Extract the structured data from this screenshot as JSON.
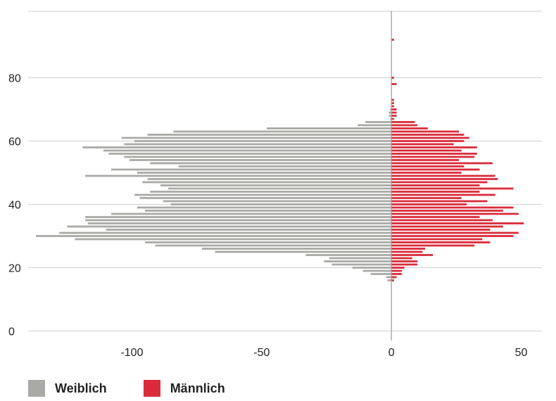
{
  "chart_data": {
    "type": "bar",
    "orientation": "horizontal-diverging",
    "x_ticks": [
      -100,
      -50,
      0,
      50
    ],
    "y_ticks": [
      0,
      20,
      40,
      60,
      80
    ],
    "xlim": [
      -140,
      58
    ],
    "ylim": [
      -3,
      101
    ],
    "grid": "horizontal",
    "legend_position": "bottom-left",
    "series": [
      {
        "name": "Weiblich",
        "color": "#a9a9a6",
        "points": [
          {
            "age": 16,
            "value": -1.5
          },
          {
            "age": 17,
            "value": -2
          },
          {
            "age": 18,
            "value": -8
          },
          {
            "age": 19,
            "value": -11
          },
          {
            "age": 20,
            "value": -15
          },
          {
            "age": 21,
            "value": -23
          },
          {
            "age": 22,
            "value": -26
          },
          {
            "age": 23,
            "value": -24
          },
          {
            "age": 24,
            "value": -33
          },
          {
            "age": 25,
            "value": -68
          },
          {
            "age": 26,
            "value": -73
          },
          {
            "age": 27,
            "value": -91
          },
          {
            "age": 28,
            "value": -95
          },
          {
            "age": 29,
            "value": -122
          },
          {
            "age": 30,
            "value": -137
          },
          {
            "age": 31,
            "value": -128
          },
          {
            "age": 32,
            "value": -110
          },
          {
            "age": 33,
            "value": -125
          },
          {
            "age": 34,
            "value": -117
          },
          {
            "age": 35,
            "value": -118
          },
          {
            "age": 36,
            "value": -118
          },
          {
            "age": 37,
            "value": -108
          },
          {
            "age": 38,
            "value": -95
          },
          {
            "age": 39,
            "value": -98
          },
          {
            "age": 40,
            "value": -85
          },
          {
            "age": 41,
            "value": -88
          },
          {
            "age": 42,
            "value": -97
          },
          {
            "age": 43,
            "value": -99
          },
          {
            "age": 44,
            "value": -93
          },
          {
            "age": 45,
            "value": -86
          },
          {
            "age": 46,
            "value": -89
          },
          {
            "age": 47,
            "value": -96
          },
          {
            "age": 48,
            "value": -94
          },
          {
            "age": 49,
            "value": -118
          },
          {
            "age": 50,
            "value": -98
          },
          {
            "age": 51,
            "value": -108
          },
          {
            "age": 52,
            "value": -82
          },
          {
            "age": 53,
            "value": -93
          },
          {
            "age": 54,
            "value": -101
          },
          {
            "age": 55,
            "value": -103
          },
          {
            "age": 56,
            "value": -109
          },
          {
            "age": 57,
            "value": -111
          },
          {
            "age": 58,
            "value": -119
          },
          {
            "age": 59,
            "value": -103
          },
          {
            "age": 60,
            "value": -99
          },
          {
            "age": 61,
            "value": -104
          },
          {
            "age": 62,
            "value": -94
          },
          {
            "age": 63,
            "value": -84
          },
          {
            "age": 64,
            "value": -48
          },
          {
            "age": 65,
            "value": -13
          },
          {
            "age": 66,
            "value": -10
          },
          {
            "age": 67,
            "value": -0.5
          },
          {
            "age": 68,
            "value": -1
          },
          {
            "age": 69,
            "value": -1
          },
          {
            "age": 70,
            "value": -0.5
          }
        ]
      },
      {
        "name": "Männlich",
        "color": "#d92b3a",
        "points": [
          {
            "age": 16,
            "value": 1
          },
          {
            "age": 17,
            "value": 2
          },
          {
            "age": 18,
            "value": 4
          },
          {
            "age": 19,
            "value": 4
          },
          {
            "age": 20,
            "value": 5
          },
          {
            "age": 21,
            "value": 10
          },
          {
            "age": 22,
            "value": 10
          },
          {
            "age": 23,
            "value": 8
          },
          {
            "age": 24,
            "value": 16
          },
          {
            "age": 25,
            "value": 12
          },
          {
            "age": 26,
            "value": 13
          },
          {
            "age": 27,
            "value": 32
          },
          {
            "age": 28,
            "value": 38
          },
          {
            "age": 29,
            "value": 35
          },
          {
            "age": 30,
            "value": 47
          },
          {
            "age": 31,
            "value": 49
          },
          {
            "age": 32,
            "value": 38
          },
          {
            "age": 33,
            "value": 43
          },
          {
            "age": 34,
            "value": 51
          },
          {
            "age": 35,
            "value": 39
          },
          {
            "age": 36,
            "value": 34
          },
          {
            "age": 37,
            "value": 49
          },
          {
            "age": 38,
            "value": 43
          },
          {
            "age": 39,
            "value": 47
          },
          {
            "age": 40,
            "value": 29
          },
          {
            "age": 41,
            "value": 37
          },
          {
            "age": 42,
            "value": 27
          },
          {
            "age": 43,
            "value": 40
          },
          {
            "age": 44,
            "value": 34
          },
          {
            "age": 45,
            "value": 47
          },
          {
            "age": 46,
            "value": 34
          },
          {
            "age": 47,
            "value": 37
          },
          {
            "age": 48,
            "value": 41
          },
          {
            "age": 49,
            "value": 40
          },
          {
            "age": 50,
            "value": 27
          },
          {
            "age": 51,
            "value": 34
          },
          {
            "age": 52,
            "value": 28
          },
          {
            "age": 53,
            "value": 39
          },
          {
            "age": 54,
            "value": 26
          },
          {
            "age": 55,
            "value": 32
          },
          {
            "age": 56,
            "value": 33
          },
          {
            "age": 57,
            "value": 27
          },
          {
            "age": 58,
            "value": 33
          },
          {
            "age": 59,
            "value": 24
          },
          {
            "age": 60,
            "value": 28
          },
          {
            "age": 61,
            "value": 30
          },
          {
            "age": 62,
            "value": 28
          },
          {
            "age": 63,
            "value": 26
          },
          {
            "age": 64,
            "value": 14
          },
          {
            "age": 65,
            "value": 10
          },
          {
            "age": 66,
            "value": 9
          },
          {
            "age": 67,
            "value": 1
          },
          {
            "age": 68,
            "value": 2
          },
          {
            "age": 69,
            "value": 2
          },
          {
            "age": 70,
            "value": 2
          },
          {
            "age": 71,
            "value": 1
          },
          {
            "age": 72,
            "value": 1
          },
          {
            "age": 73,
            "value": 1
          },
          {
            "age": 78,
            "value": 2
          },
          {
            "age": 80,
            "value": 1
          },
          {
            "age": 92,
            "value": 1
          }
        ]
      }
    ]
  },
  "legend": {
    "items": [
      {
        "label": "Weiblich",
        "color": "#a9a9a6"
      },
      {
        "label": "Männlich",
        "color": "#d92b3a"
      }
    ]
  }
}
